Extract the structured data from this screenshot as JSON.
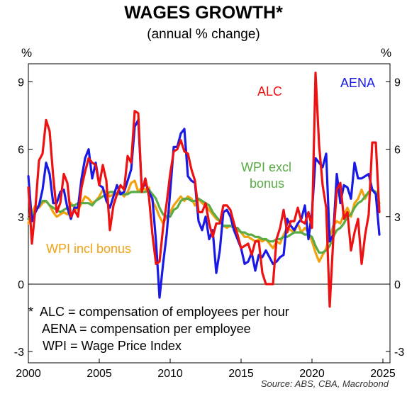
{
  "chart_data": {
    "type": "line",
    "title": "WAGES GROWTH*",
    "subtitle": "(annual % change)",
    "y_unit": "%",
    "xlim": [
      2000,
      2025.5
    ],
    "ylim": [
      -3.5,
      9.8
    ],
    "x_ticks": [
      "2000",
      "2005",
      "2010",
      "2015",
      "2020",
      "2025"
    ],
    "y_ticks": [
      "9",
      "6",
      "3",
      "0",
      "-3"
    ],
    "grid": false,
    "series": [
      {
        "name": "ALC",
        "color": "#ee1111",
        "x": [
          2000.0,
          2000.25,
          2000.5,
          2000.75,
          2001.0,
          2001.25,
          2001.5,
          2001.75,
          2002.0,
          2002.25,
          2002.5,
          2002.75,
          2003.0,
          2003.25,
          2003.5,
          2003.75,
          2004.0,
          2004.25,
          2004.5,
          2004.75,
          2005.0,
          2005.25,
          2005.5,
          2005.75,
          2006.0,
          2006.25,
          2006.5,
          2006.75,
          2007.0,
          2007.25,
          2007.5,
          2007.75,
          2008.0,
          2008.25,
          2008.5,
          2008.75,
          2009.0,
          2009.25,
          2009.5,
          2009.75,
          2010.0,
          2010.25,
          2010.5,
          2010.75,
          2011.0,
          2011.25,
          2011.5,
          2011.75,
          2012.0,
          2012.25,
          2012.5,
          2012.75,
          2013.0,
          2013.25,
          2013.5,
          2013.75,
          2014.0,
          2014.25,
          2014.5,
          2014.75,
          2015.0,
          2015.25,
          2015.5,
          2015.75,
          2016.0,
          2016.25,
          2016.5,
          2016.75,
          2017.0,
          2017.25,
          2017.5,
          2017.75,
          2018.0,
          2018.25,
          2018.5,
          2018.75,
          2019.0,
          2019.25,
          2019.5,
          2019.75,
          2020.0,
          2020.25,
          2020.5,
          2020.75,
          2021.0,
          2021.25,
          2021.5,
          2021.75,
          2022.0,
          2022.25,
          2022.5,
          2022.75,
          2023.0,
          2023.25,
          2023.5,
          2023.75,
          2024.0,
          2024.25,
          2024.5,
          2024.75
        ],
        "y": [
          4.3,
          1.8,
          3.4,
          5.5,
          5.8,
          7.3,
          6.8,
          4.8,
          3.2,
          3.6,
          4.9,
          4.5,
          3.0,
          3.3,
          3.0,
          4.3,
          5.0,
          5.6,
          5.4,
          5.3,
          4.4,
          5.3,
          4.6,
          2.4,
          3.5,
          4.0,
          4.4,
          4.2,
          5.7,
          5.4,
          7.7,
          7.6,
          4.1,
          4.7,
          3.9,
          2.2,
          0.9,
          1.0,
          2.5,
          3.6,
          4.9,
          5.9,
          6.0,
          6.4,
          5.9,
          5.8,
          5.1,
          4.6,
          3.2,
          3.2,
          3.6,
          2.7,
          2.1,
          2.7,
          2.7,
          3.5,
          3.5,
          3.3,
          2.7,
          2.2,
          1.6,
          1.7,
          1.8,
          1.3,
          1.9,
          1.9,
          0.5,
          0.0,
          0.0,
          0.0,
          2.0,
          2.5,
          3.3,
          2.3,
          2.8,
          2.8,
          3.4,
          2.8,
          2.7,
          3.2,
          2.5,
          9.4,
          6.2,
          4.4,
          3.4,
          -1.0,
          2.0,
          4.2,
          4.5,
          2.9,
          3.2,
          1.5,
          2.3,
          2.9,
          0.9,
          2.2,
          3.1,
          6.3,
          6.3,
          3.2
        ]
      },
      {
        "name": "AENA",
        "color": "#1a1ae6",
        "x": [
          2000.0,
          2000.25,
          2000.5,
          2000.75,
          2001.0,
          2001.25,
          2001.5,
          2001.75,
          2002.0,
          2002.25,
          2002.5,
          2002.75,
          2003.0,
          2003.25,
          2003.5,
          2003.75,
          2004.0,
          2004.25,
          2004.5,
          2004.75,
          2005.0,
          2005.25,
          2005.5,
          2005.75,
          2006.0,
          2006.25,
          2006.5,
          2006.75,
          2007.0,
          2007.25,
          2007.5,
          2007.75,
          2008.0,
          2008.25,
          2008.5,
          2008.75,
          2009.0,
          2009.25,
          2009.5,
          2009.75,
          2010.0,
          2010.25,
          2010.5,
          2010.75,
          2011.0,
          2011.25,
          2011.5,
          2011.75,
          2012.0,
          2012.25,
          2012.5,
          2012.75,
          2013.0,
          2013.25,
          2013.5,
          2013.75,
          2014.0,
          2014.25,
          2014.5,
          2014.75,
          2015.0,
          2015.25,
          2015.5,
          2015.75,
          2016.0,
          2016.25,
          2016.5,
          2016.75,
          2017.0,
          2017.25,
          2017.5,
          2017.75,
          2018.0,
          2018.25,
          2018.5,
          2018.75,
          2019.0,
          2019.25,
          2019.5,
          2019.75,
          2020.0,
          2020.25,
          2020.5,
          2020.75,
          2021.0,
          2021.25,
          2021.5,
          2021.75,
          2022.0,
          2022.25,
          2022.5,
          2022.75,
          2023.0,
          2023.25,
          2023.5,
          2023.75,
          2024.0,
          2024.25,
          2024.5,
          2024.75
        ],
        "y": [
          4.8,
          2.8,
          3.2,
          3.5,
          4.2,
          5.4,
          4.9,
          3.6,
          3.6,
          4.1,
          4.2,
          3.4,
          2.9,
          3.4,
          3.4,
          4.7,
          5.6,
          6.0,
          4.7,
          5.4,
          4.4,
          4.3,
          3.7,
          3.4,
          3.9,
          4.4,
          4.0,
          4.1,
          4.6,
          5.1,
          7.0,
          7.3,
          4.2,
          4.5,
          4.1,
          3.8,
          1.9,
          -0.6,
          0.9,
          2.2,
          4.1,
          6.1,
          6.1,
          6.7,
          6.9,
          4.8,
          4.6,
          4.5,
          2.8,
          2.4,
          3.0,
          2.0,
          2.4,
          0.5,
          1.5,
          3.2,
          3.3,
          3.0,
          2.4,
          2.0,
          1.6,
          0.9,
          1.0,
          1.4,
          0.6,
          1.3,
          1.2,
          1.5,
          1.2,
          0.9,
          1.0,
          1.2,
          1.3,
          2.9,
          2.6,
          2.4,
          2.7,
          2.9,
          3.5,
          2.0,
          3.2,
          5.6,
          5.4,
          5.2,
          5.8,
          1.9,
          2.2,
          4.9,
          3.6,
          4.4,
          4.3,
          3.8,
          5.4,
          4.7,
          4.7,
          4.8,
          4.9,
          4.2,
          4.0,
          2.2
        ]
      },
      {
        "name": "WPI excl bonus",
        "color": "#5aaa46",
        "x": [
          2000.0,
          2000.25,
          2000.5,
          2000.75,
          2001.0,
          2001.25,
          2001.5,
          2001.75,
          2002.0,
          2002.25,
          2002.5,
          2002.75,
          2003.0,
          2003.25,
          2003.5,
          2003.75,
          2004.0,
          2004.25,
          2004.5,
          2004.75,
          2005.0,
          2005.25,
          2005.5,
          2005.75,
          2006.0,
          2006.25,
          2006.5,
          2006.75,
          2007.0,
          2007.25,
          2007.5,
          2007.75,
          2008.0,
          2008.25,
          2008.5,
          2008.75,
          2009.0,
          2009.25,
          2009.5,
          2009.75,
          2010.0,
          2010.25,
          2010.5,
          2010.75,
          2011.0,
          2011.25,
          2011.5,
          2011.75,
          2012.0,
          2012.25,
          2012.5,
          2012.75,
          2013.0,
          2013.25,
          2013.5,
          2013.75,
          2014.0,
          2014.25,
          2014.5,
          2014.75,
          2015.0,
          2015.25,
          2015.5,
          2015.75,
          2016.0,
          2016.25,
          2016.5,
          2016.75,
          2017.0,
          2017.25,
          2017.5,
          2017.75,
          2018.0,
          2018.25,
          2018.5,
          2018.75,
          2019.0,
          2019.25,
          2019.5,
          2019.75,
          2020.0,
          2020.25,
          2020.5,
          2020.75,
          2021.0,
          2021.25,
          2021.5,
          2021.75,
          2022.0,
          2022.25,
          2022.5,
          2022.75,
          2023.0,
          2023.25,
          2023.5,
          2023.75,
          2024.0,
          2024.25,
          2024.5,
          2024.75
        ],
        "y": [
          2.9,
          3.0,
          3.3,
          3.5,
          3.7,
          3.7,
          3.5,
          3.4,
          3.3,
          3.2,
          3.3,
          3.4,
          3.5,
          3.5,
          3.6,
          3.6,
          3.6,
          3.6,
          3.5,
          3.7,
          3.8,
          3.9,
          4.0,
          4.1,
          4.1,
          4.0,
          4.0,
          4.0,
          4.0,
          4.1,
          4.1,
          4.1,
          4.1,
          4.1,
          4.2,
          4.0,
          3.8,
          3.4,
          3.1,
          3.0,
          3.0,
          3.3,
          3.4,
          3.7,
          3.8,
          3.8,
          3.7,
          3.7,
          3.8,
          3.7,
          3.6,
          3.5,
          3.2,
          3.0,
          2.8,
          2.6,
          2.6,
          2.6,
          2.5,
          2.5,
          2.3,
          2.3,
          2.2,
          2.2,
          2.1,
          2.1,
          2.0,
          2.0,
          1.9,
          1.9,
          2.0,
          2.0,
          2.1,
          2.1,
          2.2,
          2.3,
          2.3,
          2.3,
          2.2,
          2.2,
          2.1,
          1.7,
          1.4,
          1.4,
          1.5,
          1.7,
          2.1,
          2.4,
          2.5,
          2.7,
          3.0,
          3.1,
          3.4,
          3.6,
          3.7,
          3.9,
          4.1,
          4.2,
          4.1,
          3.6
        ]
      },
      {
        "name": "WPI incl bonus",
        "color": "#f2a20f",
        "x": [
          2000.0,
          2000.25,
          2000.5,
          2000.75,
          2001.0,
          2001.25,
          2001.5,
          2001.75,
          2002.0,
          2002.25,
          2002.5,
          2002.75,
          2003.0,
          2003.25,
          2003.5,
          2003.75,
          2004.0,
          2004.25,
          2004.5,
          2004.75,
          2005.0,
          2005.25,
          2005.5,
          2005.75,
          2006.0,
          2006.25,
          2006.5,
          2006.75,
          2007.0,
          2007.25,
          2007.5,
          2007.75,
          2008.0,
          2008.25,
          2008.5,
          2008.75,
          2009.0,
          2009.25,
          2009.5,
          2009.75,
          2010.0,
          2010.25,
          2010.5,
          2010.75,
          2011.0,
          2011.25,
          2011.5,
          2011.75,
          2012.0,
          2012.25,
          2012.5,
          2012.75,
          2013.0,
          2013.25,
          2013.5,
          2013.75,
          2014.0,
          2014.25,
          2014.5,
          2014.75,
          2015.0,
          2015.25,
          2015.5,
          2015.75,
          2016.0,
          2016.25,
          2016.5,
          2016.75,
          2017.0,
          2017.25,
          2017.5,
          2017.75,
          2018.0,
          2018.25,
          2018.5,
          2018.75,
          2019.0,
          2019.25,
          2019.5,
          2019.75,
          2020.0,
          2020.25,
          2020.5,
          2020.75,
          2021.0,
          2021.25,
          2021.5,
          2021.75,
          2022.0,
          2022.25,
          2022.5,
          2022.75,
          2023.0,
          2023.25,
          2023.5,
          2023.75,
          2024.0,
          2024.25,
          2024.5,
          2024.75
        ],
        "y": [
          2.7,
          3.2,
          3.5,
          3.4,
          3.6,
          3.7,
          3.5,
          3.2,
          3.0,
          3.1,
          3.2,
          3.1,
          3.6,
          3.4,
          3.3,
          3.6,
          3.9,
          3.8,
          3.6,
          3.7,
          3.9,
          4.2,
          4.1,
          3.9,
          4.0,
          4.0,
          4.1,
          3.9,
          4.1,
          4.5,
          4.6,
          4.1,
          4.3,
          4.2,
          4.3,
          3.7,
          3.4,
          3.0,
          2.7,
          3.0,
          3.2,
          3.5,
          3.7,
          3.9,
          3.7,
          3.9,
          3.8,
          3.5,
          3.8,
          3.6,
          3.5,
          3.3,
          3.1,
          2.9,
          2.8,
          2.6,
          2.5,
          2.6,
          2.5,
          2.4,
          2.3,
          2.1,
          2.1,
          2.0,
          1.9,
          2.0,
          1.9,
          2.0,
          1.8,
          1.6,
          1.9,
          1.8,
          2.2,
          2.5,
          2.4,
          2.3,
          2.7,
          2.3,
          2.5,
          2.3,
          1.9,
          1.4,
          1.0,
          1.3,
          1.6,
          2.1,
          2.6,
          2.8,
          2.7,
          3.1,
          3.4,
          3.0,
          3.6,
          3.8,
          4.2,
          3.8,
          4.1,
          4.2,
          4.1,
          3.4
        ]
      }
    ],
    "series_labels": [
      {
        "text": "ALC",
        "color": "#ee1111"
      },
      {
        "text": "AENA",
        "color": "#1a1ae6"
      },
      {
        "text": "WPI excl",
        "color": "#5aaa46"
      },
      {
        "text": "bonus",
        "color": "#5aaa46"
      },
      {
        "text": "WPI incl bonus",
        "color": "#f2a20f"
      }
    ]
  },
  "notes": [
    "*  ALC = compensation of employees per hour",
    "    AENA = compensation per employee",
    "    WPI = Wage Price Index"
  ],
  "source": "Source: ABS, CBA, Macrobond"
}
